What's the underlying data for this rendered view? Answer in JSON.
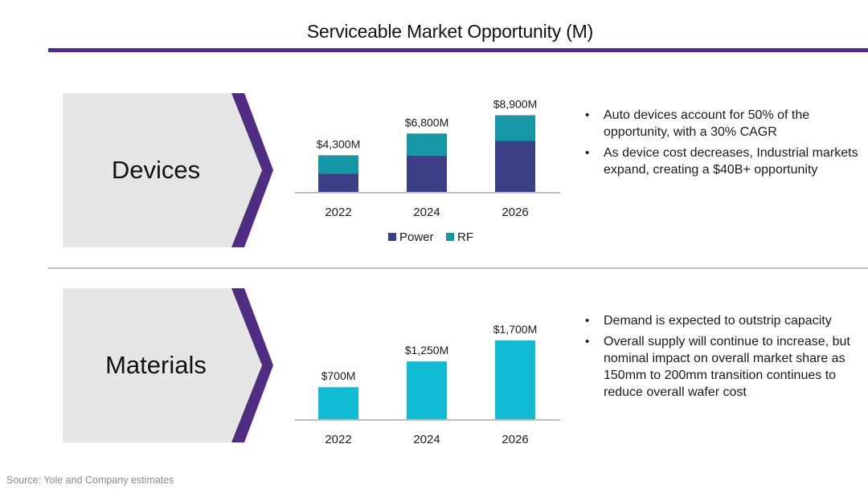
{
  "header": {
    "title": "Serviceable Market Opportunity (M)"
  },
  "colors": {
    "accent_purple": "#4f2d82",
    "chevron_fill": "#e6e6e6",
    "power": "#3b3f86",
    "rf": "#1597a6",
    "materials": "#10bcd3",
    "axis": "#bdbdbd"
  },
  "sections": {
    "devices": {
      "label": "Devices",
      "bullets": [
        "Auto devices account for 50% of the opportunity, with a 30% CAGR",
        "As device cost decreases, Industrial markets expand, creating a $40B+ opportunity"
      ]
    },
    "materials": {
      "label": "Materials",
      "bullets": [
        "Demand is expected to outstrip capacity",
        "Overall supply will continue to increase, but nominal impact on overall market share as 150mm to 200mm transition continues to reduce overall wafer cost"
      ]
    }
  },
  "chart_data": [
    {
      "id": "devices",
      "type": "bar",
      "stacked": true,
      "title": "",
      "xlabel": "",
      "ylabel": "",
      "categories": [
        "2022",
        "2024",
        "2026"
      ],
      "series": [
        {
          "name": "Power",
          "values": [
            2200,
            4250,
            5950
          ]
        },
        {
          "name": "RF",
          "values": [
            2100,
            2550,
            2950
          ]
        }
      ],
      "totals": [
        4300,
        6800,
        8900
      ],
      "data_labels": [
        "$4,300M",
        "$6,800M",
        "$8,900M"
      ],
      "ylim": [
        0,
        9500
      ],
      "grid": false,
      "legend": {
        "position": "bottom",
        "entries": [
          "Power",
          "RF"
        ]
      }
    },
    {
      "id": "materials",
      "type": "bar",
      "stacked": false,
      "title": "",
      "xlabel": "",
      "ylabel": "",
      "categories": [
        "2022",
        "2024",
        "2026"
      ],
      "series": [
        {
          "name": "Materials",
          "values": [
            700,
            1250,
            1700
          ]
        }
      ],
      "data_labels": [
        "$700M",
        "$1,250M",
        "$1,700M"
      ],
      "ylim": [
        0,
        1750
      ],
      "grid": false,
      "legend": null
    }
  ],
  "footer": {
    "source": "Source: Yole and Company estimates"
  }
}
